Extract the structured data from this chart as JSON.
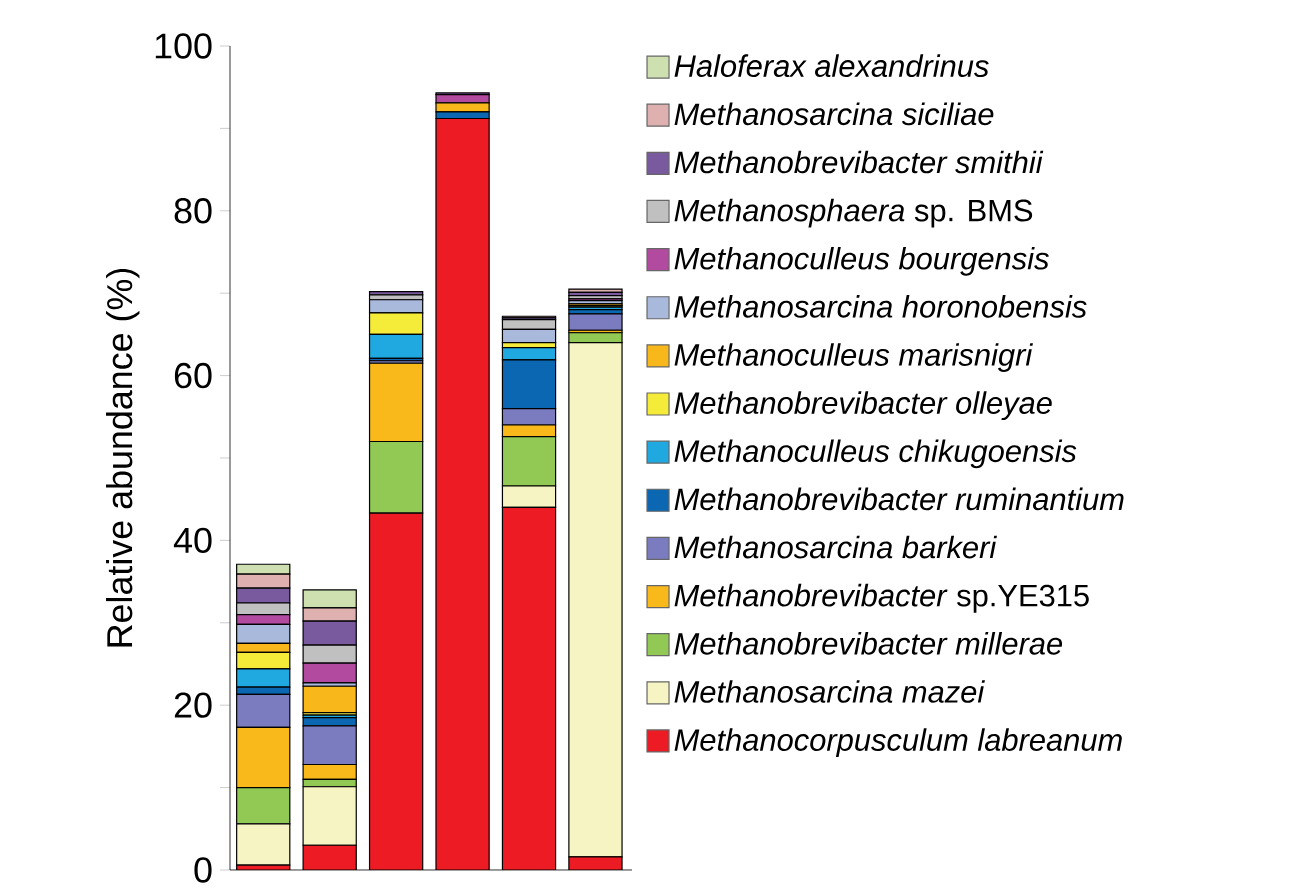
{
  "chart_data": {
    "type": "bar",
    "stacked": true,
    "ylabel": "Relative abundance (%)",
    "categories": [
      null,
      null,
      null,
      null,
      null,
      null
    ],
    "ylim": [
      0,
      100
    ],
    "yticks": [
      0,
      20,
      40,
      60,
      80,
      100
    ],
    "tick_labels": "y",
    "legend": "right",
    "series": [
      {
        "name": "*Methanocorpusculum labreanum*",
        "color": "#ed1c24",
        "values": [
          0.6,
          3.0,
          43.3,
          91.2,
          44.0,
          1.6
        ]
      },
      {
        "name": "*Methanosarcina mazei*",
        "color": "#f7f4c3",
        "values": [
          5.0,
          7.1,
          0,
          0,
          2.6,
          62.4
        ]
      },
      {
        "name": "*Methanobrevibacter millerae*",
        "color": "#92c854",
        "values": [
          4.4,
          0.9,
          8.7,
          0,
          6.0,
          1.2
        ]
      },
      {
        "name": "*Methanobrevibacter* sp.YE315",
        "color": "#f9b91b",
        "values": [
          7.3,
          1.8,
          9.5,
          0,
          1.4,
          0.3
        ]
      },
      {
        "name": "*Methanosarcina barkeri*",
        "color": "#7b7cc0",
        "values": [
          4.0,
          4.7,
          0.3,
          0,
          2.0,
          2.0
        ]
      },
      {
        "name": "*Methanobrevibacter ruminantium*",
        "color": "#0b67b1",
        "values": [
          0.9,
          1.0,
          0.3,
          0.8,
          5.9,
          0.5
        ]
      },
      {
        "name": "*Methanoculleus chikugoensis*",
        "color": "#20a8e0",
        "values": [
          2.2,
          0.3,
          2.9,
          0,
          1.5,
          0.3
        ]
      },
      {
        "name": "*Methanobrevibacter olleyae*",
        "color": "#f5ec3a",
        "values": [
          2.0,
          0.3,
          2.6,
          0,
          0.6,
          0.2
        ]
      },
      {
        "name": "*Methanoculleus marisnigri*",
        "color": "#f8b81c",
        "values": [
          1.1,
          3.2,
          null,
          1.1,
          0,
          0.2
        ]
      },
      {
        "name": "*Methanosarcina horonobensis*",
        "color": "#a9b9dc",
        "values": [
          2.3,
          0.4,
          1.6,
          0,
          1.6,
          0.4
        ]
      },
      {
        "name": "*Methanoculleus bourgensis*",
        "color": "#b24aa0",
        "values": [
          1.2,
          2.4,
          null,
          1.0,
          0,
          0.2
        ]
      },
      {
        "name": "*Methanosphaera* sp. BMS",
        "color": "#c0c0c0",
        "values": [
          1.4,
          2.2,
          0.6,
          0,
          1.2,
          0.4
        ]
      },
      {
        "name": "*Methanobrevibacter smithii*",
        "color": "#7a5a9f",
        "values": [
          1.8,
          2.9,
          0.4,
          0.2,
          0.2,
          0.4
        ]
      },
      {
        "name": "*Methanosarcina siciliae*",
        "color": "#deb0b0",
        "values": [
          1.7,
          1.6,
          0,
          0,
          0.2,
          0.4
        ]
      },
      {
        "name": "*Haloferax alexandrinus*",
        "color": "#cfe0b0",
        "values": [
          1.2,
          2.2,
          0,
          0,
          0,
          null
        ]
      }
    ]
  }
}
